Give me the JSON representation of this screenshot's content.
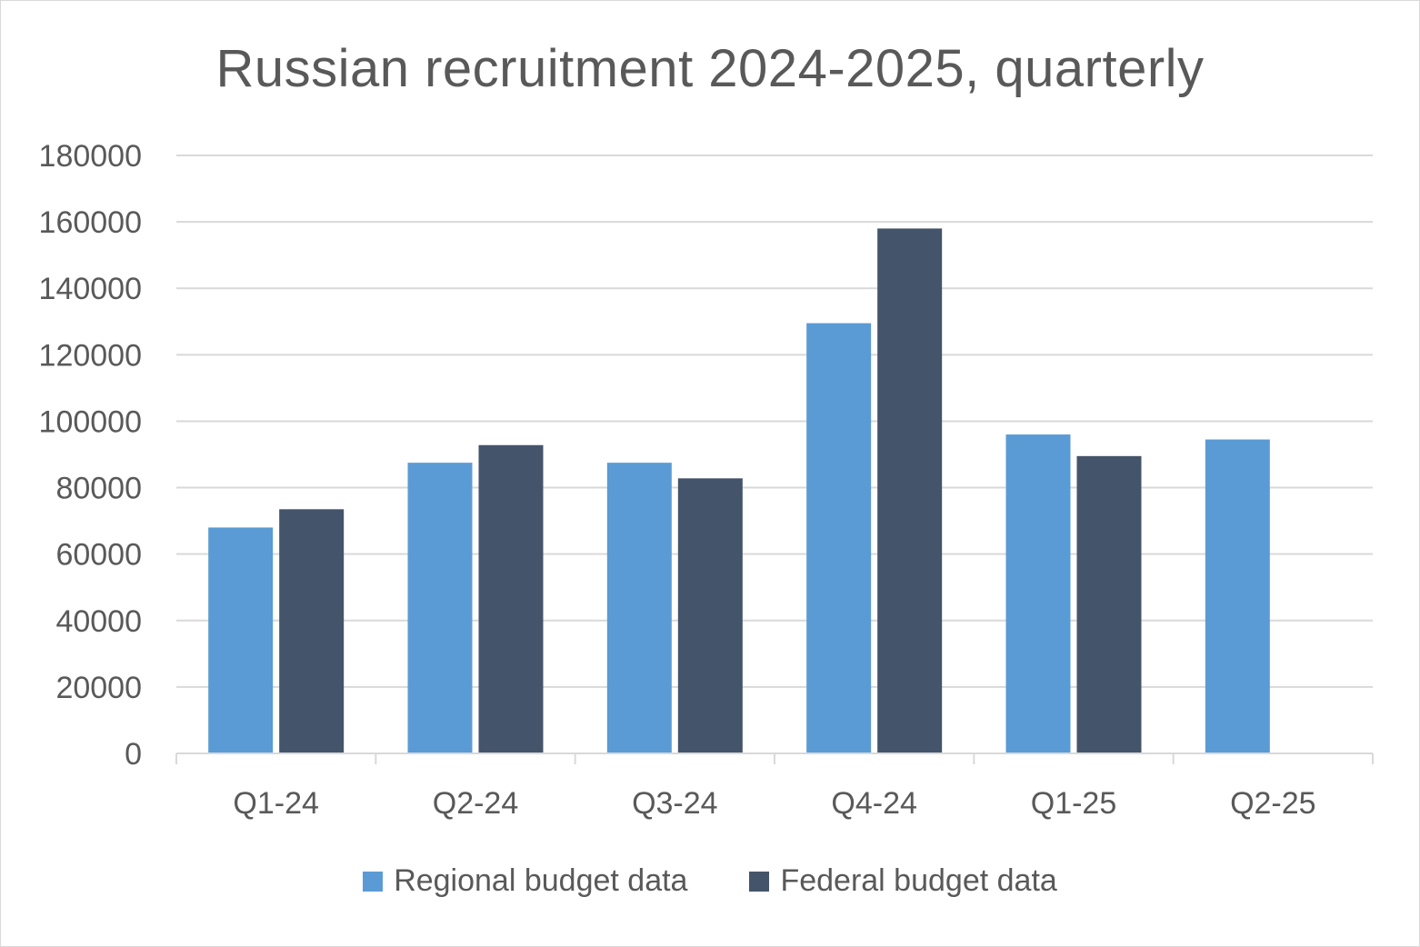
{
  "chart_data": {
    "type": "bar",
    "title": "Russian recruitment 2024-2025, quarterly",
    "categories": [
      "Q1-24",
      "Q2-24",
      "Q3-24",
      "Q4-24",
      "Q1-25",
      "Q2-25"
    ],
    "series": [
      {
        "name": "Regional budget data",
        "color": "#5b9bd5",
        "values": [
          68000,
          87500,
          87500,
          129500,
          96000,
          94500
        ]
      },
      {
        "name": "Federal budget data",
        "color": "#44546a",
        "values": [
          73500,
          92800,
          82800,
          158000,
          89500,
          null
        ]
      }
    ],
    "yticks": [
      "0",
      "20000",
      "40000",
      "60000",
      "80000",
      "100000",
      "120000",
      "140000",
      "160000",
      "180000"
    ],
    "ylim": [
      0,
      180000
    ],
    "grid": true,
    "legend_position": "bottom"
  }
}
